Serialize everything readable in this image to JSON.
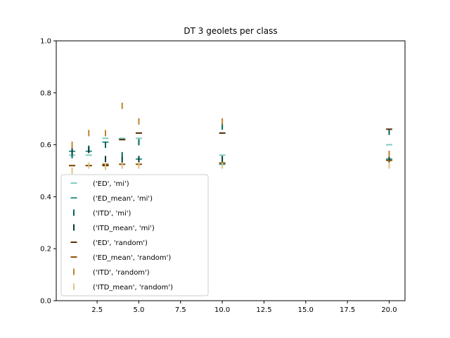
{
  "chart_data": {
    "type": "scatter",
    "title": "DT 3 geolets per class",
    "xlabel": "",
    "ylabel": "",
    "xlim": [
      0.05,
      20.95
    ],
    "ylim": [
      0.0,
      1.0
    ],
    "xticks": [
      2.5,
      5.0,
      7.5,
      10.0,
      12.5,
      15.0,
      17.5,
      20.0
    ],
    "xtick_labels": [
      "2.5",
      "5.0",
      "7.5",
      "10.0",
      "12.5",
      "15.0",
      "17.5",
      "20.0"
    ],
    "yticks": [
      0.0,
      0.2,
      0.4,
      0.6,
      0.8,
      1.0
    ],
    "ytick_labels": [
      "0.0",
      "0.2",
      "0.4",
      "0.6",
      "0.8",
      "1.0"
    ],
    "grid": false,
    "legend_position": "lower-left",
    "series": [
      {
        "name": "('ED', 'mi')",
        "marker": "hline",
        "color": "#80cdc1",
        "points": [
          [
            1,
            0.56
          ],
          [
            2,
            0.56
          ],
          [
            3,
            0.625
          ],
          [
            4,
            0.625
          ],
          [
            5,
            0.625
          ],
          [
            10,
            0.56
          ],
          [
            20,
            0.6
          ]
        ]
      },
      {
        "name": "('ED_mean', 'mi')",
        "marker": "hline",
        "color": "#35978f",
        "points": [
          [
            1,
            0.575
          ],
          [
            2,
            0.575
          ],
          [
            3,
            0.61
          ],
          [
            4,
            0.62
          ],
          [
            5,
            0.545
          ],
          [
            10,
            0.525
          ],
          [
            20,
            0.545
          ]
        ]
      },
      {
        "name": "('ITD', 'mi')",
        "marker": "vline",
        "color": "#01665e",
        "points": [
          [
            1,
            0.56
          ],
          [
            2,
            0.585
          ],
          [
            3,
            0.6
          ],
          [
            4,
            0.56
          ],
          [
            5,
            0.61
          ],
          [
            10,
            0.67
          ],
          [
            20,
            0.65
          ]
        ]
      },
      {
        "name": "('ITD_mean', 'mi')",
        "marker": "vline",
        "color": "#003c30",
        "points": [
          [
            1,
            0.575
          ],
          [
            2,
            0.58
          ],
          [
            3,
            0.545
          ],
          [
            4,
            0.54
          ],
          [
            5,
            0.545
          ],
          [
            10,
            0.545
          ],
          [
            20,
            0.545
          ]
        ]
      },
      {
        "name": "('ED', 'random')",
        "marker": "hline",
        "color": "#543005",
        "points": [
          [
            1,
            0.52
          ],
          [
            2,
            0.52
          ],
          [
            3,
            0.52
          ],
          [
            4,
            0.62
          ],
          [
            5,
            0.645
          ],
          [
            10,
            0.645
          ],
          [
            20,
            0.66
          ]
        ]
      },
      {
        "name": "('ED_mean', 'random')",
        "marker": "hline",
        "color": "#8c510a",
        "points": [
          [
            1,
            0.52
          ],
          [
            2,
            0.52
          ],
          [
            3,
            0.525
          ],
          [
            4,
            0.525
          ],
          [
            5,
            0.525
          ],
          [
            10,
            0.53
          ],
          [
            20,
            0.54
          ]
        ]
      },
      {
        "name": "('ITD', 'random')",
        "marker": "vline",
        "color": "#bf812d",
        "points": [
          [
            1,
            0.6
          ],
          [
            2,
            0.645
          ],
          [
            3,
            0.645
          ],
          [
            4,
            0.75
          ],
          [
            5,
            0.69
          ],
          [
            10,
            0.69
          ],
          [
            20,
            0.565
          ]
        ]
      },
      {
        "name": "('ITD_mean', 'random')",
        "marker": "vline",
        "color": "#dfc27d",
        "points": [
          [
            1,
            0.5
          ],
          [
            2,
            0.52
          ],
          [
            3,
            0.515
          ],
          [
            4,
            0.52
          ],
          [
            5,
            0.52
          ],
          [
            10,
            0.52
          ],
          [
            20,
            0.52
          ]
        ]
      }
    ]
  }
}
